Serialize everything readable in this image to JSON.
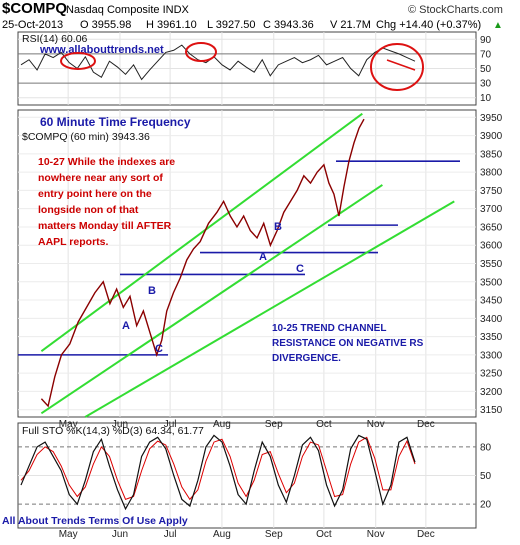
{
  "header": {
    "symbol": "$COMPQ",
    "name": "Nasdaq Composite INDX",
    "brand": "© StockCharts.com",
    "date": "25-Oct-2013",
    "open": "O 3955.98",
    "high": "H 3961.10",
    "low": "L 3927.50",
    "close": "C 3943.36",
    "volume": "V 21.7M",
    "change": "Chg +14.40 (+0.37%)",
    "change_marker": "▲"
  },
  "rsi_panel": {
    "label": "RSI(14) 60.06",
    "watermark": "www.allabouttrends.net",
    "ticks": [
      "90",
      "70",
      "50",
      "30",
      "10"
    ]
  },
  "price_panel": {
    "frequency_title": "60 Minute Time Frequency",
    "legend": "$COMPQ (60 min) 3943.36",
    "note_left": [
      "10-27 While the indexes are",
      "nowhere near any sort of",
      "entry point here on the",
      "longside non of that",
      "matters Monday till AFTER",
      "AAPL reports."
    ],
    "note_right": [
      "10-25 TREND CHANNEL",
      "RESISTANCE ON NEGATIVE RS",
      "DIVERGENCE."
    ],
    "wave_labels": [
      "A",
      "B",
      "C",
      "A",
      "B",
      "C"
    ]
  },
  "sto_panel": {
    "label": "Full STO %K(14,3) %D(3) 64.34, 61.77",
    "footer": "All About Trends Terms Of Use Apply",
    "ticks": [
      "80",
      "50",
      "20"
    ]
  },
  "chart_data": {
    "type": "line",
    "title": "$COMPQ Nasdaq Composite INDX",
    "x_months": [
      "May",
      "Jun",
      "Jul",
      "Aug",
      "Sep",
      "Oct",
      "Nov",
      "Dec"
    ],
    "price_axis": {
      "ticks": [
        3150,
        3200,
        3250,
        3300,
        3350,
        3400,
        3450,
        3500,
        3550,
        3600,
        3650,
        3700,
        3750,
        3800,
        3850,
        3900,
        3950
      ],
      "range": [
        3130,
        3970
      ]
    },
    "price_series": {
      "name": "$COMPQ (60 min)",
      "x": [
        "2013-04-15",
        "2013-04-19",
        "2013-04-23",
        "2013-04-27",
        "2013-05-02",
        "2013-05-07",
        "2013-05-12",
        "2013-05-17",
        "2013-05-22",
        "2013-05-26",
        "2013-05-30",
        "2013-06-03",
        "2013-06-07",
        "2013-06-11",
        "2013-06-15",
        "2013-06-19",
        "2013-06-23",
        "2013-06-26",
        "2013-06-29",
        "2013-07-03",
        "2013-07-07",
        "2013-07-11",
        "2013-07-15",
        "2013-07-19",
        "2013-07-24",
        "2013-07-29",
        "2013-08-02",
        "2013-08-06",
        "2013-08-10",
        "2013-08-14",
        "2013-08-18",
        "2013-08-22",
        "2013-08-26",
        "2013-08-30",
        "2013-09-03",
        "2013-09-07",
        "2013-09-11",
        "2013-09-15",
        "2013-09-19",
        "2013-09-23",
        "2013-09-27",
        "2013-10-01",
        "2013-10-04",
        "2013-10-07",
        "2013-10-10",
        "2013-10-13",
        "2013-10-16",
        "2013-10-19",
        "2013-10-22",
        "2013-10-25"
      ],
      "values": [
        3180,
        3160,
        3240,
        3300,
        3330,
        3390,
        3430,
        3470,
        3500,
        3440,
        3480,
        3430,
        3460,
        3380,
        3420,
        3360,
        3300,
        3340,
        3420,
        3470,
        3510,
        3560,
        3590,
        3610,
        3660,
        3690,
        3720,
        3680,
        3650,
        3680,
        3640,
        3620,
        3660,
        3600,
        3640,
        3690,
        3720,
        3750,
        3790,
        3770,
        3800,
        3820,
        3770,
        3740,
        3680,
        3760,
        3830,
        3880,
        3920,
        3945
      ]
    },
    "horizontal_levels": [
      3300,
      3520,
      3580,
      3655,
      3830
    ],
    "trend_channel": {
      "upper": {
        "from": [
          "2013-04-15",
          3310
        ],
        "to": [
          "2013-10-24",
          3960
        ]
      },
      "middle": {
        "from": [
          "2013-04-15",
          3140
        ],
        "to": [
          "2013-11-05",
          3765
        ]
      },
      "lower": {
        "from": [
          "2013-04-15",
          3060
        ],
        "to": [
          "2013-12-18",
          3720
        ]
      }
    },
    "rsi": {
      "ticks": [
        90,
        70,
        50,
        30,
        10
      ],
      "values": [
        55,
        62,
        48,
        70,
        65,
        72,
        58,
        50,
        66,
        45,
        38,
        60,
        52,
        42,
        55,
        35,
        48,
        60,
        72,
        75,
        82,
        70,
        62,
        58,
        66,
        55,
        48,
        60,
        52,
        45,
        62,
        40,
        55,
        60,
        65,
        58,
        62,
        68,
        55,
        60,
        65,
        50,
        40,
        62,
        72,
        78,
        74,
        70,
        65,
        60
      ]
    },
    "stochastic": {
      "ticks": [
        80,
        50,
        20
      ],
      "k_values": [
        40,
        60,
        80,
        85,
        70,
        55,
        30,
        20,
        45,
        75,
        88,
        60,
        35,
        15,
        30,
        70,
        85,
        90,
        78,
        50,
        25,
        18,
        45,
        80,
        92,
        85,
        60,
        30,
        20,
        55,
        85,
        70,
        40,
        22,
        50,
        82,
        90,
        76,
        40,
        18,
        35,
        78,
        92,
        88,
        55,
        20,
        40,
        85,
        90,
        64
      ],
      "d_values": [
        45,
        55,
        72,
        80,
        75,
        60,
        40,
        28,
        38,
        62,
        80,
        70,
        45,
        25,
        28,
        55,
        78,
        86,
        82,
        62,
        38,
        25,
        35,
        65,
        85,
        88,
        70,
        42,
        28,
        45,
        72,
        75,
        52,
        32,
        42,
        70,
        85,
        82,
        55,
        28,
        30,
        62,
        85,
        90,
        68,
        35,
        35,
        70,
        86,
        62
      ]
    }
  }
}
